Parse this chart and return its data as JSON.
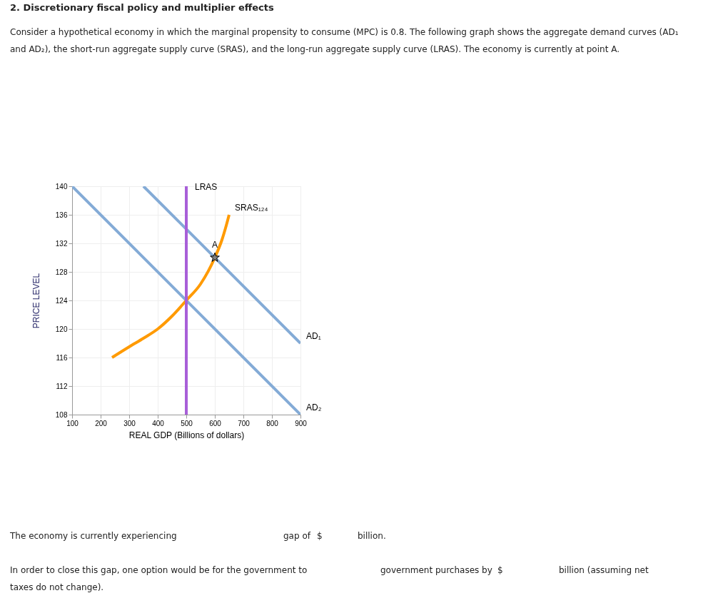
{
  "chart_data": {
    "type": "line",
    "title": "2. Discretionary fiscal policy and multiplier effects",
    "subtitle": "Consider a hypothetical economy in which the marginal propensity to consume (MPC) is 0.8. The following graph shows the aggregate demand curves (AD₁ and AD₂), the short-run aggregate supply curve (SRAS), and the long-run aggregate supply curve (LRAS). The economy is currently at point A.",
    "xlabel": "REAL GDP (Billions of dollars)",
    "ylabel": "PRICE LEVEL",
    "xlim": [
      100,
      900
    ],
    "xticks": [
      100,
      200,
      300,
      400,
      500,
      600,
      700,
      800,
      900
    ],
    "ylim": [
      108,
      140
    ],
    "yticks": [
      108,
      112,
      116,
      120,
      124,
      128,
      132,
      136,
      140
    ],
    "grid": true,
    "legend": false,
    "marker": "none",
    "line_style": "solid",
    "series": [
      {
        "name": "AD₁",
        "color": "#84abd6",
        "x": [
          350,
          900
        ],
        "values": [
          140,
          118
        ]
      },
      {
        "name": "AD₂",
        "color": "#84abd6",
        "x": [
          100,
          900
        ],
        "values": [
          140,
          108
        ]
      },
      {
        "name": "SRAS₁₂₄",
        "color": "#ff9a00",
        "x": [
          240,
          300,
          350,
          400,
          450,
          500,
          550,
          600,
          625,
          640,
          650
        ],
        "values": [
          116,
          117.5,
          118.7,
          120,
          121.8,
          124,
          126.3,
          130,
          132.5,
          134.5,
          136
        ]
      },
      {
        "name": "A",
        "type": "scatter",
        "marker": "star",
        "color": "#808080",
        "x": [
          600
        ],
        "values": [
          130
        ]
      }
    ],
    "ref_lines": [
      {
        "axis": "x",
        "value": 500,
        "label": "LRAS",
        "color": "#a85fd8"
      }
    ],
    "annotations": [
      "The economy is currently experiencing",
      "gap of",
      "$",
      "billion.",
      "In order to close this gap, one option would be for the government to",
      "government purchases by",
      "$",
      "billion (assuming net",
      "taxes do not change)."
    ]
  }
}
